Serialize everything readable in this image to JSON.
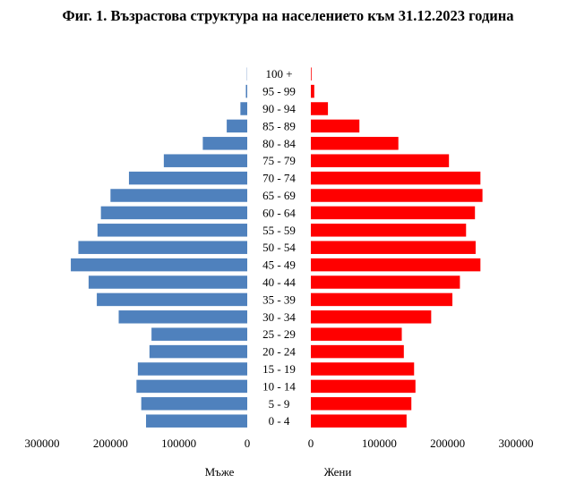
{
  "chart_data": {
    "type": "bar",
    "orientation": "horizontal",
    "subtype": "population-pyramid",
    "title": "Фиг. 1. Възрастова структура на населението към 31.12.2023 година",
    "categories": [
      "0 - 4",
      "5 - 9",
      "10 - 14",
      "15 - 19",
      "20 - 24",
      "25 - 29",
      "30 - 34",
      "35 - 39",
      "40 - 44",
      "45 - 49",
      "50 - 54",
      "55 - 59",
      "60 - 64",
      "65 - 69",
      "70 - 74",
      "75 - 79",
      "80 - 84",
      "85 - 89",
      "90 - 94",
      "95 - 99",
      "100 +"
    ],
    "series": [
      {
        "name": "Мъже",
        "color": "#4f81bd",
        "values": [
          148000,
          155000,
          162000,
          160000,
          143000,
          140000,
          188000,
          220000,
          232000,
          258000,
          247000,
          219000,
          214000,
          200000,
          173000,
          122000,
          65000,
          30000,
          10000,
          2000,
          400
        ]
      },
      {
        "name": "Жени",
        "color": "#ff0000",
        "values": [
          140000,
          147000,
          153000,
          151000,
          136000,
          133000,
          176000,
          207000,
          218000,
          248000,
          241000,
          227000,
          240000,
          251000,
          248000,
          202000,
          128000,
          71000,
          25000,
          5000,
          1000
        ]
      }
    ],
    "left_axis": {
      "ticks": [
        300000,
        200000,
        100000,
        0
      ],
      "range": [
        0,
        300000
      ],
      "reversed": true
    },
    "right_axis": {
      "ticks": [
        0,
        100000,
        200000,
        300000
      ],
      "range": [
        0,
        300000
      ]
    },
    "side_labels": {
      "left": "Мъже",
      "right": "Жени"
    },
    "grid": false,
    "legend": "none"
  }
}
